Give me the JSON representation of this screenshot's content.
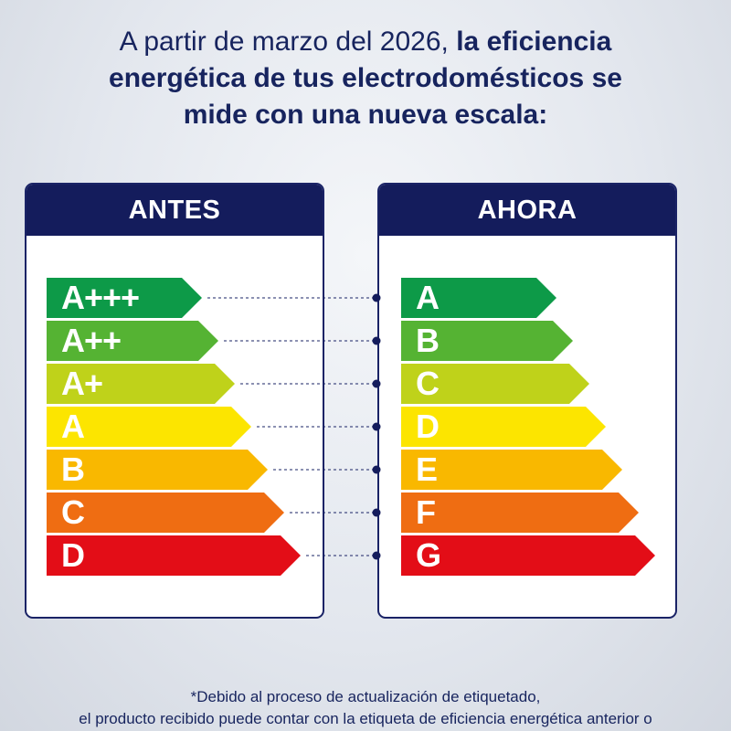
{
  "headline": {
    "line1_regular": "A partir de marzo del 2026, ",
    "line1_bold": "la eficiencia",
    "line2_bold": "energética de tus electrodomésticos se",
    "line3_bold": "mide con una nueva escala:"
  },
  "before": {
    "title": "ANTES",
    "classes": [
      "A+++",
      "A++",
      "A+",
      "A",
      "B",
      "C",
      "D"
    ]
  },
  "after": {
    "title": "AHORA",
    "classes": [
      "A",
      "B",
      "C",
      "D",
      "E",
      "F",
      "G"
    ]
  },
  "colors": [
    "#0d9a48",
    "#55b333",
    "#bfd21a",
    "#fce500",
    "#f9b800",
    "#ef6d12",
    "#e30d17"
  ],
  "footnote": {
    "line1": "*Debido al proceso de actualización de etiquetado,",
    "line2": "el producto recibido puede contar con la etiqueta de eficiencia energética anterior o"
  }
}
